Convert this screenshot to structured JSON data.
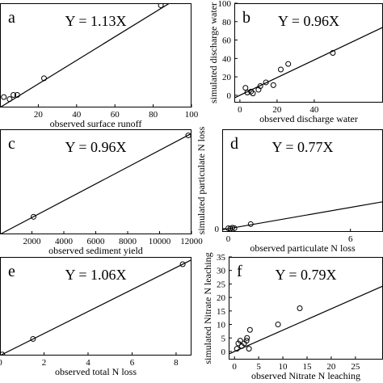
{
  "chart_data": [
    {
      "type": "scatter",
      "panel": "a",
      "annotation": "Y = 1.13X",
      "slope": 1.13,
      "xlabel": "observed surface runoff",
      "x": [
        2,
        5,
        7,
        9,
        23,
        84
      ],
      "y": [
        10,
        8,
        12,
        12,
        28,
        98
      ],
      "xlim": [
        0,
        100
      ],
      "ylim": [
        0,
        100
      ],
      "xticks": [
        20,
        40,
        60,
        80,
        100
      ],
      "yticks": []
    },
    {
      "type": "scatter",
      "panel": "b",
      "annotation": "Y = 0.96X",
      "slope": 0.96,
      "xlabel": "observed discharge water",
      "ylabel": "simulated discharge water",
      "x": [
        3,
        4,
        6,
        7,
        10,
        11,
        14,
        18,
        22,
        26,
        50
      ],
      "y": [
        8,
        3,
        4,
        2,
        6,
        10,
        14,
        11,
        28,
        34,
        46
      ],
      "xlim": [
        -3,
        77
      ],
      "ylim": [
        -8,
        100
      ],
      "xticks": [
        0,
        20,
        40
      ],
      "yticks": [
        0,
        20,
        40,
        60,
        80,
        100
      ]
    },
    {
      "type": "scatter",
      "panel": "c",
      "annotation": "Y = 0.96X",
      "slope": 0.96,
      "xlabel": "observed sediment yield",
      "x": [
        2100,
        11800
      ],
      "y": [
        2000,
        11300
      ],
      "xlim": [
        0,
        12000
      ],
      "ylim": [
        0,
        12000
      ],
      "xticks": [
        2000,
        4000,
        6000,
        8000,
        10000,
        12000
      ],
      "yticks": []
    },
    {
      "type": "scatter",
      "panel": "d",
      "annotation": "Y = 0.77X",
      "slope": 0.77,
      "xlabel": "observed particulate N loss",
      "ylabel": "simulated particulate N loss",
      "x": [
        0,
        0.1,
        0.2,
        0.3,
        1.1
      ],
      "y": [
        0.1,
        0,
        0.2,
        0.1,
        1.0
      ],
      "xlim": [
        -0.3,
        7.6
      ],
      "ylim": [
        -0.7,
        21.6
      ],
      "xticks": [
        0,
        6
      ],
      "yticks": [
        0
      ]
    },
    {
      "type": "scatter",
      "panel": "e",
      "annotation": "Y = 1.06X",
      "slope": 1.06,
      "xlabel": "observed total N loss",
      "x": [
        0.1,
        1.5,
        8.3
      ],
      "y": [
        0.1,
        1.6,
        8.8
      ],
      "xlim": [
        0,
        8.7
      ],
      "ylim": [
        0,
        9.5
      ],
      "xticks": [
        0,
        2,
        4,
        6,
        8
      ],
      "yticks": []
    },
    {
      "type": "scatter",
      "panel": "f",
      "annotation": "Y = 0.79X",
      "slope": 0.79,
      "xlabel": "observed Nitrate N leaching",
      "ylabel": "simulated Nitrate N leaching",
      "x": [
        0.5,
        0.8,
        1.2,
        1.5,
        2,
        2.5,
        2.6,
        3,
        3.2,
        9,
        13.5
      ],
      "y": [
        1,
        3,
        4,
        2,
        3,
        4,
        5,
        1,
        8,
        10,
        16
      ],
      "xlim": [
        -1.2,
        30.7
      ],
      "ylim": [
        -3,
        35
      ],
      "xticks": [
        0,
        5,
        10,
        15,
        20,
        25
      ],
      "yticks": [
        0,
        5,
        10,
        15,
        20,
        25,
        30,
        35
      ]
    }
  ]
}
